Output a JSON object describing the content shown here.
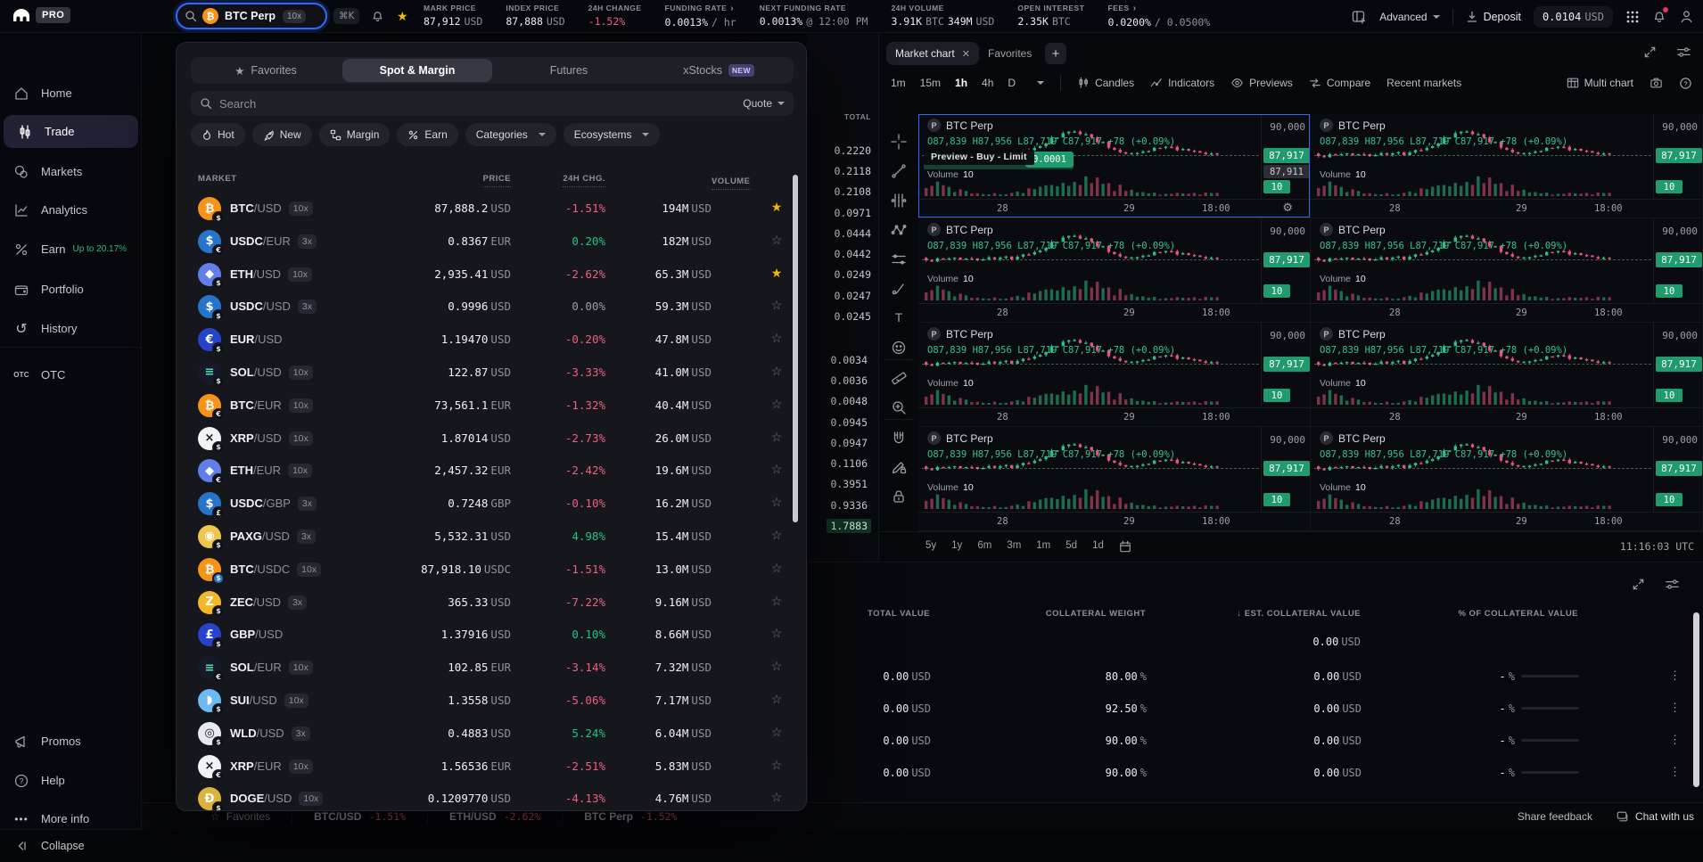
{
  "topbar": {
    "brand": {
      "badge": "PRO"
    },
    "search": {
      "market": "BTC Perp",
      "leverage": "10x",
      "shortcut": "⌘K"
    },
    "stats": [
      {
        "label": "MARK PRICE",
        "v1": "87,912",
        "u1": "USD"
      },
      {
        "label": "INDEX PRICE",
        "v1": "87,888",
        "u1": "USD"
      },
      {
        "label": "24H CHANGE",
        "v1": "-1.52%",
        "tone": "down"
      },
      {
        "label": "FUNDING RATE",
        "chev": true,
        "v1": "0.0013%",
        "u1": "/ hr"
      },
      {
        "label": "NEXT FUNDING RATE",
        "v1": "0.0013%",
        "u1": "@ 12:00 PM"
      },
      {
        "label": "24H VOLUME",
        "v1": "3.91K",
        "u1": "BTC",
        "v2": "349M",
        "u2": "USD"
      },
      {
        "label": "OPEN INTEREST",
        "v1": "2.35K",
        "u1": "BTC"
      },
      {
        "label": "FEES",
        "chev": true,
        "v1": "0.0200%",
        "u1": "/ 0.0500%"
      }
    ],
    "advanced_label": "Advanced",
    "deposit_label": "Deposit",
    "balance": "0.0104",
    "balance_unit": "USD"
  },
  "sidebar": {
    "items": [
      {
        "label": "Home"
      },
      {
        "label": "Trade",
        "active": true
      },
      {
        "label": "Markets"
      },
      {
        "label": "Analytics"
      },
      {
        "label": "Earn",
        "badge": "Up to 20.17%"
      },
      {
        "label": "Portfolio"
      },
      {
        "label": "History"
      },
      {
        "label": "OTC"
      },
      {
        "label": "Promos"
      },
      {
        "label": "Help"
      },
      {
        "label": "More info"
      },
      {
        "label": "Collapse"
      }
    ]
  },
  "market_panel": {
    "tabs": {
      "favorites": "Favorites",
      "spot": "Spot & Margin",
      "futures": "Futures",
      "xstocks": "xStocks",
      "new_badge": "NEW"
    },
    "search_placeholder": "Search",
    "quote_label": "Quote",
    "filters": [
      {
        "label": "Hot",
        "flame": true
      },
      {
        "label": "New",
        "rocket": true
      },
      {
        "label": "Margin",
        "marg": true
      },
      {
        "label": "Earn",
        "pct": true
      },
      {
        "label": "Categories",
        "dd": true
      },
      {
        "label": "Ecosystems",
        "dd": true
      }
    ],
    "columns": {
      "market": "MARKET",
      "price": "PRICE",
      "chg": "24H CHG.",
      "volume": "VOLUME"
    },
    "rows": [
      {
        "base": "BTC",
        "quote": "/USD",
        "lev": "10x",
        "price": "87,888.2",
        "punit": "USD",
        "chg": "-1.51%",
        "tone": "down",
        "vol": "194M",
        "vunit": "USD",
        "fav": true,
        "icon": {
          "glyph": "₿",
          "bg": "#f7931a",
          "fg": "#ffffff"
        },
        "sub": "$"
      },
      {
        "base": "USDC",
        "quote": "/EUR",
        "lev": "3x",
        "price": "0.8367",
        "punit": "EUR",
        "chg": "0.20%",
        "tone": "up",
        "vol": "182M",
        "vunit": "USD",
        "icon": {
          "glyph": "$",
          "bg": "#2775ca",
          "fg": "#ffffff"
        },
        "sub": "€"
      },
      {
        "base": "ETH",
        "quote": "/USD",
        "lev": "10x",
        "price": "2,935.41",
        "punit": "USD",
        "chg": "-2.62%",
        "tone": "down",
        "vol": "65.3M",
        "vunit": "USD",
        "fav": true,
        "icon": {
          "glyph": "◆",
          "bg": "#627eea",
          "fg": "#ffffff"
        },
        "sub": "$"
      },
      {
        "base": "USDC",
        "quote": "/USD",
        "lev": "3x",
        "price": "0.9996",
        "punit": "USD",
        "chg": "0.00%",
        "tone": "flat",
        "vol": "59.3M",
        "vunit": "USD",
        "icon": {
          "glyph": "$",
          "bg": "#2775ca",
          "fg": "#ffffff"
        },
        "sub": "$"
      },
      {
        "base": "EUR",
        "quote": "/USD",
        "price": "1.19470",
        "punit": "USD",
        "chg": "-0.20%",
        "tone": "down",
        "vol": "47.8M",
        "vunit": "USD",
        "icon": {
          "glyph": "€",
          "bg": "#2743c9",
          "fg": "#ffffff"
        },
        "sub": "$"
      },
      {
        "base": "SOL",
        "quote": "/USD",
        "lev": "10x",
        "price": "122.87",
        "punit": "USD",
        "chg": "-3.33%",
        "tone": "down",
        "vol": "41.0M",
        "vunit": "USD",
        "icon": {
          "glyph": "≡",
          "bg": "#17182a",
          "fg": "#43e5b3"
        },
        "sub": "$"
      },
      {
        "base": "BTC",
        "quote": "/EUR",
        "lev": "10x",
        "price": "73,561.1",
        "punit": "EUR",
        "chg": "-1.32%",
        "tone": "down",
        "vol": "40.4M",
        "vunit": "USD",
        "icon": {
          "glyph": "₿",
          "bg": "#f7931a",
          "fg": "#ffffff"
        },
        "sub": "€"
      },
      {
        "base": "XRP",
        "quote": "/USD",
        "lev": "10x",
        "price": "1.87014",
        "punit": "USD",
        "chg": "-2.73%",
        "tone": "down",
        "vol": "26.0M",
        "vunit": "USD",
        "icon": {
          "glyph": "×",
          "bg": "#f2f3f6",
          "fg": "#17181d"
        },
        "sub": "$"
      },
      {
        "base": "ETH",
        "quote": "/EUR",
        "lev": "10x",
        "price": "2,457.32",
        "punit": "EUR",
        "chg": "-2.42%",
        "tone": "down",
        "vol": "19.6M",
        "vunit": "USD",
        "icon": {
          "glyph": "◆",
          "bg": "#627eea",
          "fg": "#ffffff"
        },
        "sub": "€"
      },
      {
        "base": "USDC",
        "quote": "/GBP",
        "lev": "3x",
        "price": "0.7248",
        "punit": "GBP",
        "chg": "-0.10%",
        "tone": "down",
        "vol": "16.2M",
        "vunit": "USD",
        "icon": {
          "glyph": "$",
          "bg": "#2775ca",
          "fg": "#ffffff"
        },
        "sub": "£"
      },
      {
        "base": "PAXG",
        "quote": "/USD",
        "lev": "3x",
        "price": "5,532.31",
        "punit": "USD",
        "chg": "4.98%",
        "tone": "up",
        "vol": "15.4M",
        "vunit": "USD",
        "icon": {
          "glyph": "◉",
          "bg": "#eec64f",
          "fg": "#ffffff"
        },
        "sub": "$"
      },
      {
        "base": "BTC",
        "quote": "/USDC",
        "lev": "10x",
        "price": "87,918.10",
        "punit": "USDC",
        "chg": "-1.51%",
        "tone": "down",
        "vol": "13.0M",
        "vunit": "USD",
        "icon": {
          "glyph": "₿",
          "bg": "#f7931a",
          "fg": "#ffffff"
        },
        "sub": "$",
        "subbg": "#2775ca"
      },
      {
        "base": "ZEC",
        "quote": "/USD",
        "lev": "3x",
        "price": "365.33",
        "punit": "USD",
        "chg": "-7.22%",
        "tone": "down",
        "vol": "9.16M",
        "vunit": "USD",
        "icon": {
          "glyph": "Z",
          "bg": "#f4b728",
          "fg": "#ffffff"
        },
        "sub": "$"
      },
      {
        "base": "GBP",
        "quote": "/USD",
        "price": "1.37916",
        "punit": "USD",
        "chg": "0.10%",
        "tone": "up",
        "vol": "8.66M",
        "vunit": "USD",
        "icon": {
          "glyph": "£",
          "bg": "#2743c9",
          "fg": "#ffffff"
        },
        "sub": "$"
      },
      {
        "base": "SOL",
        "quote": "/EUR",
        "lev": "10x",
        "price": "102.85",
        "punit": "EUR",
        "chg": "-3.14%",
        "tone": "down",
        "vol": "7.32M",
        "vunit": "USD",
        "icon": {
          "glyph": "≡",
          "bg": "#17182a",
          "fg": "#43e5b3"
        },
        "sub": "€"
      },
      {
        "base": "SUI",
        "quote": "/USD",
        "lev": "10x",
        "price": "1.3558",
        "punit": "USD",
        "chg": "-5.06%",
        "tone": "down",
        "vol": "7.17M",
        "vunit": "USD",
        "icon": {
          "glyph": "◗",
          "bg": "#6db9f2",
          "fg": "#ffffff"
        },
        "sub": "$"
      },
      {
        "base": "WLD",
        "quote": "/USD",
        "lev": "3x",
        "price": "0.4883",
        "punit": "USD",
        "chg": "5.24%",
        "tone": "up",
        "vol": "6.04M",
        "vunit": "USD",
        "icon": {
          "glyph": "◎",
          "bg": "#e9e9f0",
          "fg": "#17181d"
        },
        "sub": "$"
      },
      {
        "base": "XRP",
        "quote": "/EUR",
        "lev": "10x",
        "price": "1.56536",
        "punit": "EUR",
        "chg": "-2.51%",
        "tone": "down",
        "vol": "5.83M",
        "vunit": "USD",
        "icon": {
          "glyph": "×",
          "bg": "#f2f3f6",
          "fg": "#17181d"
        },
        "sub": "€"
      },
      {
        "base": "DOGE",
        "quote": "/USD",
        "lev": "10x",
        "price": "0.1209770",
        "punit": "USD",
        "chg": "-4.13%",
        "tone": "down",
        "vol": "4.76M",
        "vunit": "USD",
        "icon": {
          "glyph": "Ð",
          "bg": "#d9b33c",
          "fg": "#ffffff"
        },
        "sub": "$"
      }
    ]
  },
  "orderbook": {
    "header": "TOTAL",
    "asks": [
      {
        "v": "0.2220"
      },
      {
        "v": "0.2118"
      },
      {
        "v": "0.2108"
      },
      {
        "v": "0.0971"
      },
      {
        "v": "0.0444"
      },
      {
        "v": "0.0442"
      },
      {
        "v": "0.0249"
      },
      {
        "v": "0.0247"
      },
      {
        "v": "0.0245"
      }
    ],
    "bids": [
      {
        "v": "0.0034"
      },
      {
        "v": "0.0036"
      },
      {
        "v": "0.0048"
      },
      {
        "v": "0.0945"
      },
      {
        "v": "0.0947"
      },
      {
        "v": "0.1106"
      },
      {
        "v": "0.3951"
      },
      {
        "v": "0.9336"
      },
      {
        "v": "1.7883",
        "hl": "hl"
      }
    ]
  },
  "chart_panel": {
    "tabs": {
      "active": "Market chart",
      "second": "Favorites",
      "add": "+"
    },
    "timeframes": [
      {
        "t": "1m"
      },
      {
        "t": "15m"
      },
      {
        "t": "1h",
        "on": true
      },
      {
        "t": "4h"
      },
      {
        "t": "D"
      }
    ],
    "tools": {
      "candles": "Candles",
      "indicators": "Indicators",
      "previews": "Previews",
      "compare": "Compare",
      "recent": "Recent markets",
      "multi": "Multi chart"
    },
    "chart": {
      "pbadge": "P",
      "symbol": "BTC Perp",
      "ohlc": "O87,839 H87,956 L87,719 C87,917 +78 (+0.09%)",
      "vol_label": "Volume",
      "vol_value": "10",
      "y_top": "90,000",
      "y_price": "87,917",
      "y_price2": "87,911",
      "vol_badge": "10",
      "xticks": [
        "28",
        "29",
        "18:00"
      ]
    },
    "preview": {
      "text": "Preview - Buy - Limit",
      "badge": "0.0001"
    },
    "cells": [
      {
        "sel": true
      },
      {},
      {},
      {},
      {},
      {},
      {},
      {}
    ],
    "footer": {
      "ranges": [
        "5y",
        "1y",
        "6m",
        "3m",
        "1m",
        "5d",
        "1d"
      ],
      "clock": "11:16:03 UTC"
    }
  },
  "collateral_panel": {
    "columns": {
      "total": "TOTAL VALUE",
      "weight": "COLLATERAL WEIGHT",
      "est": "EST. COLLATERAL VALUE",
      "pct": "% OF COLLATERAL VALUE"
    },
    "summary": {
      "value": "0.00",
      "unit": "USD"
    },
    "rows": [
      {
        "total": "0.00",
        "tu": "USD",
        "weight": "80.00",
        "wu": "%",
        "est": "0.00",
        "eu": "USD",
        "pct": "-",
        "pu": "%"
      },
      {
        "total": "0.00",
        "tu": "USD",
        "weight": "92.50",
        "wu": "%",
        "est": "0.00",
        "eu": "USD",
        "pct": "-",
        "pu": "%"
      },
      {
        "total": "0.00",
        "tu": "USD",
        "weight": "90.00",
        "wu": "%",
        "est": "0.00",
        "eu": "USD",
        "pct": "-",
        "pu": "%"
      },
      {
        "total": "0.00",
        "tu": "USD",
        "weight": "90.00",
        "wu": "%",
        "est": "0.00",
        "eu": "USD",
        "pct": "-",
        "pu": "%"
      }
    ]
  },
  "footer": {
    "fav_label": "Favorites",
    "ticker": [
      {
        "p": "BTC/USD",
        "c": "-1.51%",
        "tone": "down"
      },
      {
        "p": "ETH/USD",
        "c": "-2.62%",
        "tone": "down"
      },
      {
        "p": "BTC Perp",
        "c": "-1.52%",
        "tone": "down"
      }
    ],
    "share": "Share feedback",
    "chat": "Chat with us"
  },
  "colors": {
    "accent_blue": "#2e6bf0",
    "up_green": "#22c381",
    "down_red": "#ee5f80",
    "badge_green": "#1f9b6e",
    "star_gold": "#f1b90c"
  }
}
